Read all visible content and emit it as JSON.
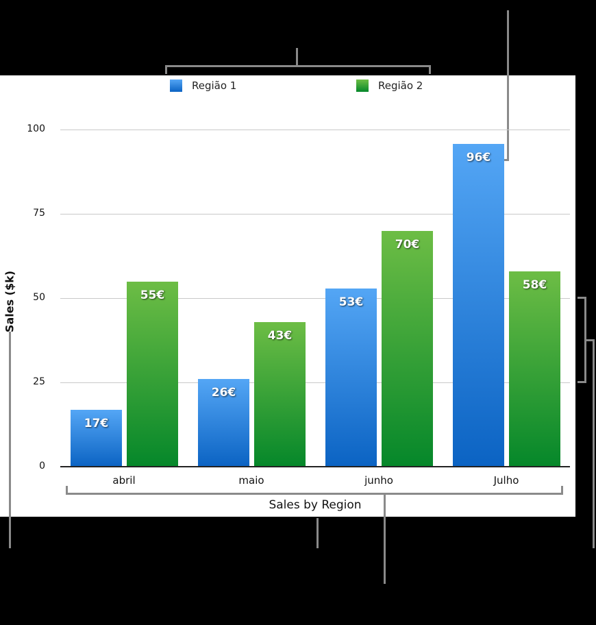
{
  "chart_data": {
    "type": "bar",
    "title": "Sales by Region",
    "xlabel": "Sales by Region",
    "ylabel": "Sales ($k)",
    "categories": [
      "abril",
      "maio",
      "junho",
      "Julho"
    ],
    "series": [
      {
        "name": "Região 1",
        "color": "#2f86e0",
        "values": [
          17,
          26,
          53,
          96
        ],
        "labels": [
          "17€",
          "26€",
          "53€",
          "96€"
        ]
      },
      {
        "name": "Região 2",
        "color": "#3aa33a",
        "values": [
          55,
          43,
          70,
          58
        ],
        "labels": [
          "55€",
          "43€",
          "70€",
          "58€"
        ]
      }
    ],
    "ylim": [
      0,
      100
    ],
    "yticks": [
      "0",
      "25",
      "50",
      "75",
      "100"
    ],
    "grid": true,
    "legend_position": "top"
  }
}
